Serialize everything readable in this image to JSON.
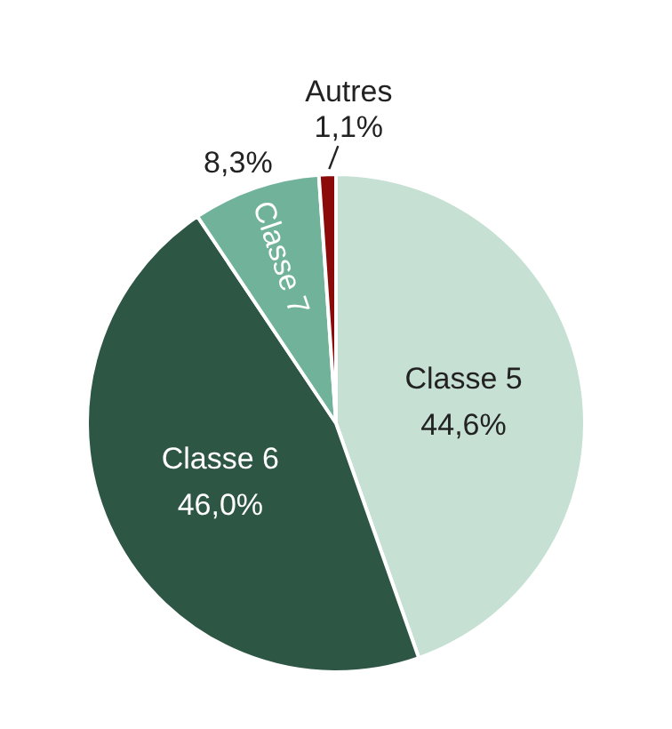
{
  "chart_data": {
    "type": "pie",
    "categories": [
      "Classe 5",
      "Classe 6",
      "Classe 7",
      "Autres"
    ],
    "values": [
      44.6,
      46.0,
      8.3,
      1.1
    ],
    "colors": [
      "#c6e0d4",
      "#2e5645",
      "#70b39a",
      "#8b0a0a"
    ],
    "value_labels": [
      "44,6%",
      "46,0%",
      "8,3%",
      "1,1%"
    ],
    "legend": false
  }
}
